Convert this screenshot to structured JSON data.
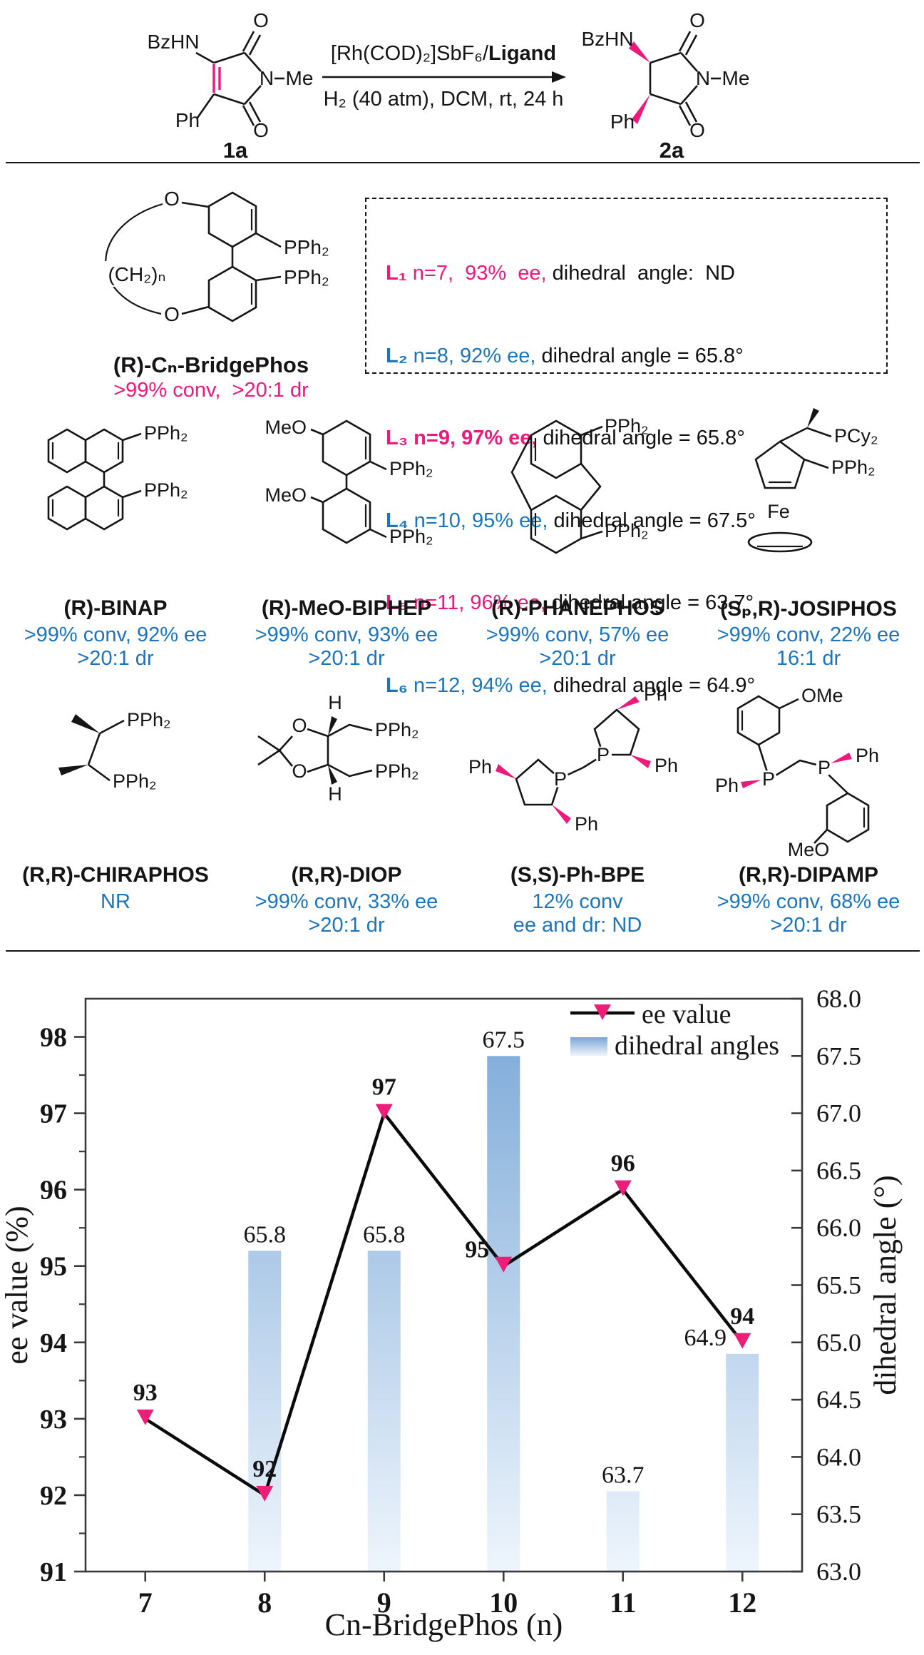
{
  "scheme": {
    "reactant": "1a",
    "product": "2a",
    "cond1": "[Rh(COD)₂]SbF₆/",
    "cond1b": "Ligand",
    "cond2": "H₂ (40 atm), DCM, rt, 24 h"
  },
  "bridgephos": {
    "name": "(R)-Cₙ-BridgePhos",
    "result": ">99% conv,  >20:1 dr"
  },
  "ligand_box": {
    "lines": [
      {
        "id": "L₁",
        "colored": " n=7,  93%  ee, ",
        "rest": "dihedral  angle:  ND"
      },
      {
        "id": "L₂",
        "colored": " n=8, 92% ee, ",
        "rest": "dihedral angle = 65.8°"
      },
      {
        "id": "L₃",
        "colored": " n=9, 97% ee, ",
        "rest": "dihedral angle = 65.8°"
      },
      {
        "id": "L₄",
        "colored": " n=10, 95% ee, ",
        "rest": "dihedral angle = 67.5°"
      },
      {
        "id": "L₅",
        "colored": " n=11, 96% ee, ",
        "rest": "dihedral angle = 63.7°"
      },
      {
        "id": "L₆",
        "colored": " n=12, 94% ee, ",
        "rest": "dihedral angle = 64.9°"
      }
    ]
  },
  "ligands": [
    {
      "name": "(R)-BINAP",
      "result1": ">99% conv, 92% ee",
      "result2": ">20:1 dr"
    },
    {
      "name": "(R)-MeO-BIPHEP",
      "result1": ">99% conv, 93% ee",
      "result2": ">20:1 dr"
    },
    {
      "name": "(R)-PHANEPHOS",
      "result1": ">99% conv, 57% ee",
      "result2": ">20:1 dr"
    },
    {
      "name": "(Sₚ,R)-JOSIPHOS",
      "result1": ">99% conv, 22% ee",
      "result2": "16:1 dr"
    },
    {
      "name": "(R,R)-CHIRAPHOS",
      "result1": "NR",
      "result2": ""
    },
    {
      "name": "(R,R)-DIOP",
      "result1": ">99% conv, 33% ee",
      "result2": ">20:1 dr"
    },
    {
      "name": "(S,S)-Ph-BPE",
      "result1": "12% conv",
      "result2": "ee and dr: ND"
    },
    {
      "name": "(R,R)-DIPAMP",
      "result1": ">99% conv, 68% ee",
      "result2": ">20:1 dr"
    }
  ],
  "atoms": {
    "s1a": {
      "bzhn": "BzHN",
      "ph": "Ph",
      "n": "N",
      "me": "Me",
      "o1": "O",
      "o2": "O"
    },
    "s2a": {
      "bzhn": "BzHN",
      "ph": "Ph",
      "n": "N",
      "me": "Me",
      "o1": "O",
      "o2": "O"
    },
    "bridgephos": {
      "o1": "O",
      "o2": "O",
      "p1": "PPh₂",
      "p2": "PPh₂",
      "chain": "(CH₂)ₙ"
    },
    "binap": {
      "p1": "PPh₂",
      "p2": "PPh₂"
    },
    "biphep": {
      "m1": "MeO",
      "m2": "MeO",
      "p1": "PPh₂",
      "p2": "PPh₂"
    },
    "phanephos": {
      "p1": "PPh₂",
      "p2": "PPh₂"
    },
    "josiphos": {
      "p1": "PCy₂",
      "p2": "PPh₂",
      "fe": "Fe"
    },
    "chiraphos": {
      "p1": "PPh₂",
      "p2": "PPh₂"
    },
    "diop": {
      "o1": "O",
      "o2": "O",
      "h1": "H",
      "h2": "H",
      "p1": "PPh₂",
      "p2": "PPh₂"
    },
    "phbpe": {
      "p1": "P",
      "p2": "P",
      "f1": "Ph",
      "f2": "Ph",
      "f3": "Ph",
      "f4": "Ph"
    },
    "dipamp": {
      "o1": "OMe",
      "o2": "MeO",
      "p1": "P",
      "p2": "P",
      "f1": "Ph",
      "f2": "Ph"
    }
  },
  "chart_data": {
    "type": "line+bar",
    "categories": [
      7,
      8,
      9,
      10,
      11,
      12
    ],
    "series": [
      {
        "name": "ee value",
        "type": "line",
        "axis": "left",
        "values": [
          93,
          92,
          97,
          95,
          96,
          94
        ]
      },
      {
        "name": "dihedral angles",
        "type": "bar",
        "axis": "right",
        "values": [
          null,
          65.8,
          65.8,
          67.5,
          63.7,
          64.9
        ]
      }
    ],
    "xlabel": "Cn-BridgePhos (n)",
    "ylabel_left": "ee value (%)",
    "ylabel_right": "dihedral angle (°)",
    "ylim_left": [
      91,
      98.5
    ],
    "ylim_right": [
      63.0,
      68.0
    ],
    "left_ticks": [
      91,
      92,
      93,
      94,
      95,
      96,
      97,
      98
    ],
    "right_tick_step": 0.5,
    "grid": false,
    "legend": [
      "ee value",
      "dihedral angles"
    ],
    "legend_position": "top-right",
    "colors": {
      "line": "#0b0b0b",
      "marker": "#EE1D77",
      "bar_top": "#79a7d7",
      "bar_bottom": "#eef5fc",
      "ee_label": "#1c4b9c",
      "bar_label": "#1a1a1a",
      "axis": "#3a3a3a"
    }
  }
}
